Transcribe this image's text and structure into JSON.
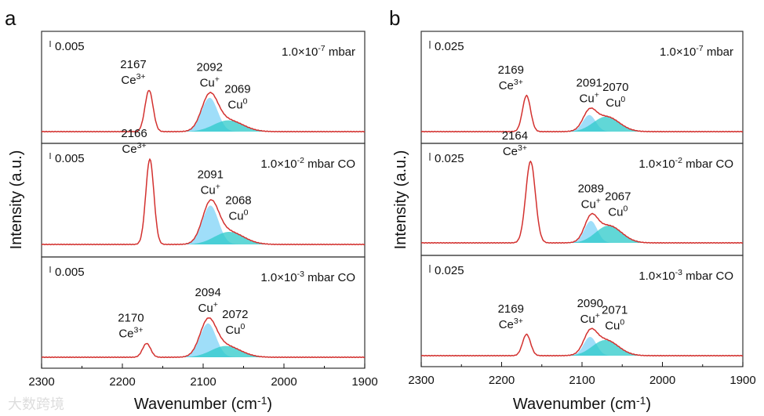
{
  "watermark": "大数跨境",
  "colors": {
    "total": "#d3312f",
    "cu_plus": "#7fd3f7",
    "cu_zero": "#2cc9c9",
    "frame": "#333333"
  },
  "chart_data": [
    {
      "type": "line",
      "panel_label": "a",
      "xlabel": "Wavenumber (cm",
      "xlabel_sup": "-1",
      "xlabel_end": ")",
      "ylabel": "Intensity (a.u.)",
      "xlim": [
        2300,
        1900
      ],
      "xticks": [
        "2300",
        "2200",
        "2100",
        "2000",
        "1900"
      ],
      "scale_per_bar": 0.005,
      "subplots": [
        {
          "condition": "1.0×10",
          "exp": "-7",
          "cond_end": " mbar",
          "scale_bar": "0.005",
          "peaks": [
            {
              "pos": 2167,
              "label": "2167",
              "species": "Ce",
              "sup": "3+",
              "height": 0.033,
              "sigma": 5,
              "fill": false
            },
            {
              "pos": 2092,
              "label": "2092",
              "species": "Cu",
              "sup": "+",
              "height": 0.027,
              "sigma": 10,
              "fill": "cu_plus"
            },
            {
              "pos": 2069,
              "label": "2069",
              "species": "Cu",
              "sup": "0",
              "height": 0.009,
              "sigma": 18,
              "fill": "cu_zero"
            }
          ]
        },
        {
          "condition": "1.0×10",
          "exp": "-2",
          "cond_end": " mbar CO",
          "scale_bar": "0.005",
          "peaks": [
            {
              "pos": 2166,
              "label": "2166",
              "species": "Ce",
              "sup": "3+",
              "height": 0.068,
              "sigma": 5,
              "fill": false
            },
            {
              "pos": 2091,
              "label": "2091",
              "species": "Cu",
              "sup": "+",
              "height": 0.031,
              "sigma": 10,
              "fill": "cu_plus"
            },
            {
              "pos": 2068,
              "label": "2068",
              "species": "Cu",
              "sup": "0",
              "height": 0.01,
              "sigma": 18,
              "fill": "cu_zero"
            }
          ]
        },
        {
          "condition": "1.0×10",
          "exp": "-3",
          "cond_end": " mbar CO",
          "scale_bar": "0.005",
          "peaks": [
            {
              "pos": 2170,
              "label": "2170",
              "species": "Ce",
              "sup": "3+",
              "height": 0.011,
              "sigma": 5,
              "fill": false
            },
            {
              "pos": 2094,
              "label": "2094",
              "species": "Cu",
              "sup": "+",
              "height": 0.027,
              "sigma": 10,
              "fill": "cu_plus"
            },
            {
              "pos": 2072,
              "label": "2072",
              "species": "Cu",
              "sup": "0",
              "height": 0.009,
              "sigma": 18,
              "fill": "cu_zero"
            }
          ]
        }
      ]
    },
    {
      "type": "line",
      "panel_label": "b",
      "xlabel": "Wavenumber (cm",
      "xlabel_sup": "-1",
      "xlabel_end": ")",
      "ylabel": "Intensity (a.u.)",
      "xlim": [
        2300,
        1900
      ],
      "xticks": [
        "2300",
        "2200",
        "2100",
        "2000",
        "1900"
      ],
      "scale_per_bar": 0.025,
      "subplots": [
        {
          "condition": "1.0×10",
          "exp": "-7",
          "cond_end": " mbar",
          "scale_bar": "0.025",
          "peaks": [
            {
              "pos": 2169,
              "label": "2169",
              "species": "Ce",
              "sup": "3+",
              "height": 0.115,
              "sigma": 5,
              "fill": false
            },
            {
              "pos": 2091,
              "label": "2091",
              "species": "Cu",
              "sup": "+",
              "height": 0.053,
              "sigma": 8,
              "fill": "cu_plus"
            },
            {
              "pos": 2070,
              "label": "2070",
              "species": "Cu",
              "sup": "0",
              "height": 0.048,
              "sigma": 16,
              "fill": "cu_zero"
            }
          ]
        },
        {
          "condition": "1.0×10",
          "exp": "-2",
          "cond_end": " mbar CO",
          "scale_bar": "0.025",
          "peaks": [
            {
              "pos": 2164,
              "label": "2164",
              "species": "Ce",
              "sup": "3+",
              "height": 0.26,
              "sigma": 6,
              "fill": false
            },
            {
              "pos": 2089,
              "label": "2089",
              "species": "Cu",
              "sup": "+",
              "height": 0.07,
              "sigma": 8,
              "fill": "cu_plus"
            },
            {
              "pos": 2067,
              "label": "2067",
              "species": "Cu",
              "sup": "0",
              "height": 0.055,
              "sigma": 16,
              "fill": "cu_zero"
            }
          ]
        },
        {
          "condition": "1.0×10",
          "exp": "-3",
          "cond_end": " mbar CO",
          "scale_bar": "0.025",
          "peaks": [
            {
              "pos": 2169,
              "label": "2169",
              "species": "Ce",
              "sup": "3+",
              "height": 0.068,
              "sigma": 5,
              "fill": false
            },
            {
              "pos": 2090,
              "label": "2090",
              "species": "Cu",
              "sup": "+",
              "height": 0.06,
              "sigma": 8,
              "fill": "cu_plus"
            },
            {
              "pos": 2071,
              "label": "2071",
              "species": "Cu",
              "sup": "0",
              "height": 0.05,
              "sigma": 16,
              "fill": "cu_zero"
            }
          ]
        }
      ]
    }
  ]
}
